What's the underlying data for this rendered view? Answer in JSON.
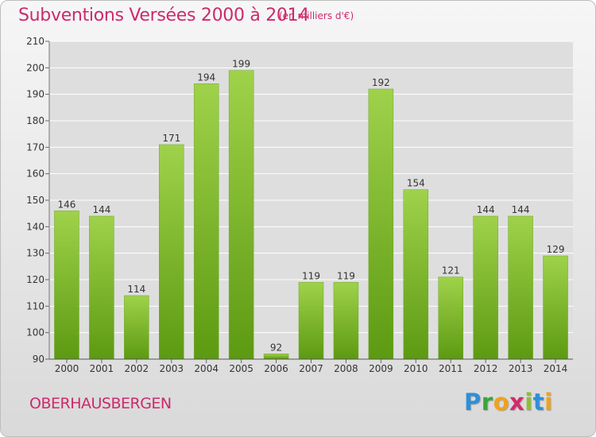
{
  "header": {
    "title": "Subventions Versées 2000 à 2014",
    "subtitle": "(en milliers d'€)"
  },
  "footer": {
    "commune": "OBERHAUSBERGEN",
    "logo": {
      "letters": [
        "P",
        "r",
        "o",
        "x",
        "i",
        "t",
        "i"
      ],
      "colors": [
        "#2d8fd8",
        "#3aa53a",
        "#f0a21a",
        "#d42a6a",
        "#8dbf32",
        "#2d8fd8",
        "#f0a21a"
      ]
    }
  },
  "chart_data": {
    "type": "bar",
    "title": "Subventions Versées 2000 à 2014",
    "subtitle": "(en milliers d'€)",
    "categories": [
      "2000",
      "2001",
      "2002",
      "2003",
      "2004",
      "2005",
      "2006",
      "2007",
      "2008",
      "2009",
      "2010",
      "2011",
      "2012",
      "2013",
      "2014"
    ],
    "values": [
      146,
      144,
      114,
      171,
      194,
      199,
      92,
      119,
      119,
      192,
      154,
      121,
      144,
      144,
      129
    ],
    "ylim": [
      90,
      210
    ],
    "yticks": [
      90,
      100,
      110,
      120,
      130,
      140,
      150,
      160,
      170,
      180,
      190,
      200,
      210
    ],
    "grid": true,
    "colors": {
      "bar_top": "#9fd24a",
      "bar_bottom": "#5c9a12",
      "grid": "#ffffff",
      "text": "#333333"
    }
  }
}
